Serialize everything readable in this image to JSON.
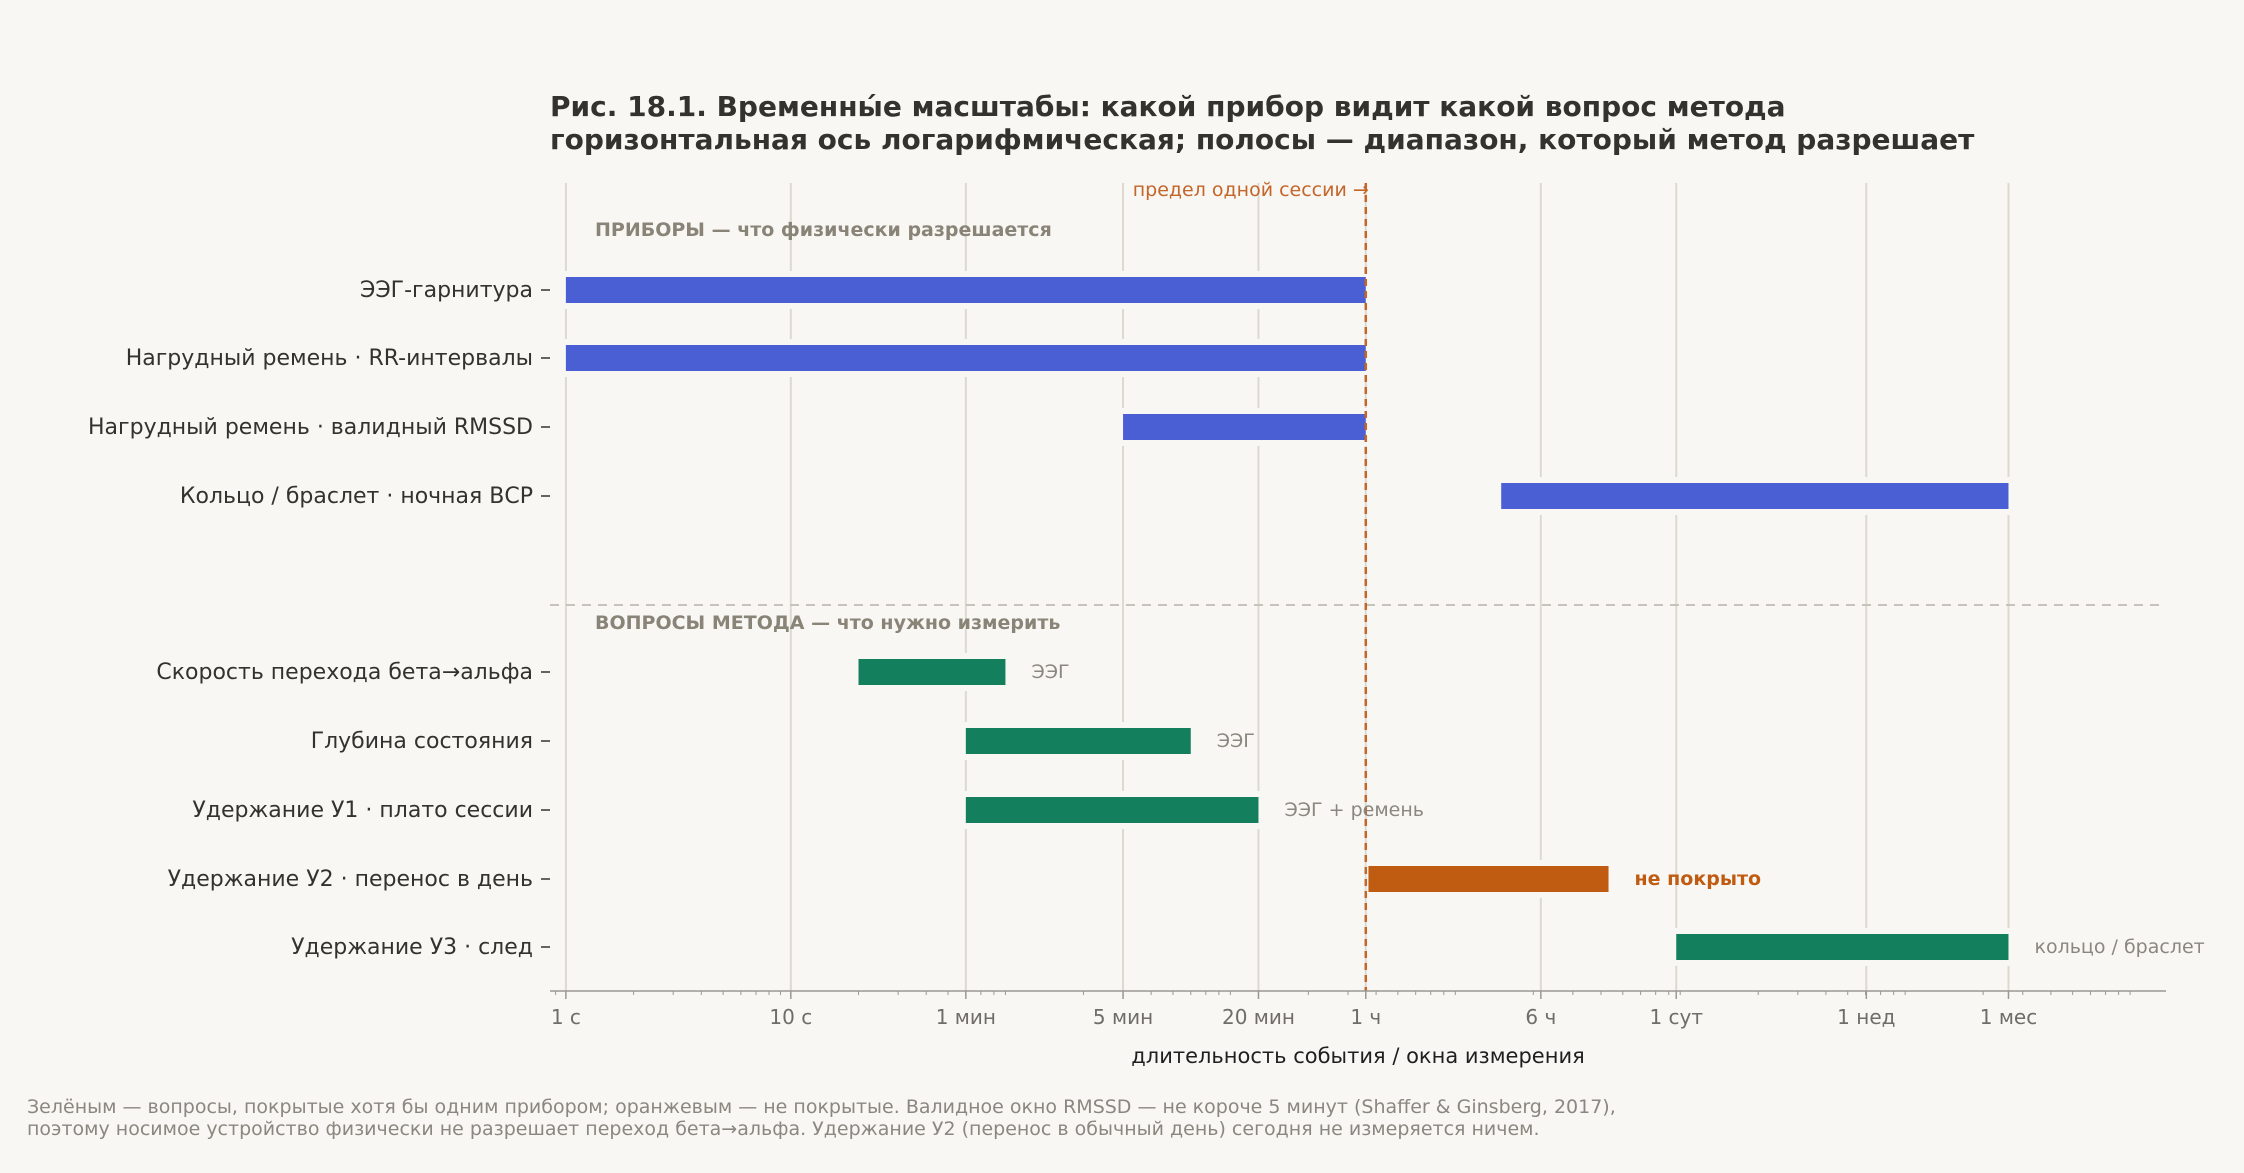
{
  "chart_data": {
    "type": "range-bar",
    "title": "Рис. 18.1. Временны́е масштабы: какой прибор видит какой вопрос метода",
    "subtitle": "горизонтальная ось логарифмическая; полосы — диапазон, который метод разрешает",
    "xlabel": "длительность события / окна измерения",
    "x_scale": "log",
    "x_unit": "seconds",
    "xlim": [
      0.85,
      13000000
    ],
    "x_ticks": [
      {
        "value": 1,
        "label": "1 с"
      },
      {
        "value": 10,
        "label": "10 с"
      },
      {
        "value": 60,
        "label": "1 мин"
      },
      {
        "value": 300,
        "label": "5 мин"
      },
      {
        "value": 1200,
        "label": "20 мин"
      },
      {
        "value": 3600,
        "label": "1 ч"
      },
      {
        "value": 21600,
        "label": "6 ч"
      },
      {
        "value": 86400,
        "label": "1 сут"
      },
      {
        "value": 604800,
        "label": "1 нед"
      },
      {
        "value": 2592000,
        "label": "1 мес"
      }
    ],
    "grid": "vertical",
    "session_limit": {
      "value": 3600,
      "label": "предел одной сессии →"
    },
    "groups": [
      {
        "label": "ПРИБОРЫ — что физически разрешается",
        "rows": [
          {
            "label": "ЭЭГ-гарнитура",
            "start": 1,
            "end": 3600,
            "status": "device"
          },
          {
            "label": "Нагрудный ремень · RR-интервалы",
            "start": 1,
            "end": 3600,
            "status": "device"
          },
          {
            "label": "Нагрудный ремень · валидный RMSSD",
            "start": 300,
            "end": 3600,
            "status": "device"
          },
          {
            "label": "Кольцо / браслет · ночная ВСР",
            "start": 14400,
            "end": 2592000,
            "status": "device"
          }
        ]
      },
      {
        "label": "ВОПРОСЫ МЕТОДА — что нужно измерить",
        "rows": [
          {
            "label": "Скорость перехода бета→альфа",
            "start": 20,
            "end": 90,
            "status": "covered",
            "note": "ЭЭГ"
          },
          {
            "label": "Глубина состояния",
            "start": 60,
            "end": 600,
            "status": "covered",
            "note": "ЭЭГ"
          },
          {
            "label": "Удержание У1 · плато сессии",
            "start": 60,
            "end": 1200,
            "status": "covered",
            "note": "ЭЭГ + ремень"
          },
          {
            "label": "Удержание У2 · перенос в день",
            "start": 3700,
            "end": 43200,
            "status": "uncovered",
            "note": "не покрыто"
          },
          {
            "label": "Удержание У3 · след",
            "start": 86400,
            "end": 2592000,
            "status": "covered",
            "note": "кольцо / браслет"
          }
        ]
      }
    ],
    "colors": {
      "device": "#4a5fd4",
      "covered": "#147f5c",
      "uncovered": "#c05b12",
      "session_limit": "#c4652a",
      "grid": "#dcd9d1",
      "axis": "#9b9892",
      "row_label": "#33322f",
      "group_label": "#8a8478",
      "note": "#8a8780",
      "title": "#33322f"
    }
  },
  "footnote": {
    "line1": "Зелёным — вопросы, покрытые хотя бы одним прибором; оранжевым — не покрытые. Валидное окно RMSSD — не короче 5 минут (Shaffer & Ginsberg, 2017),",
    "line2": "поэтому носимое устройство физически не разрешает переход бета→альфа. Удержание У2 (перенос в обычный день) сегодня не измеряется ничем."
  }
}
